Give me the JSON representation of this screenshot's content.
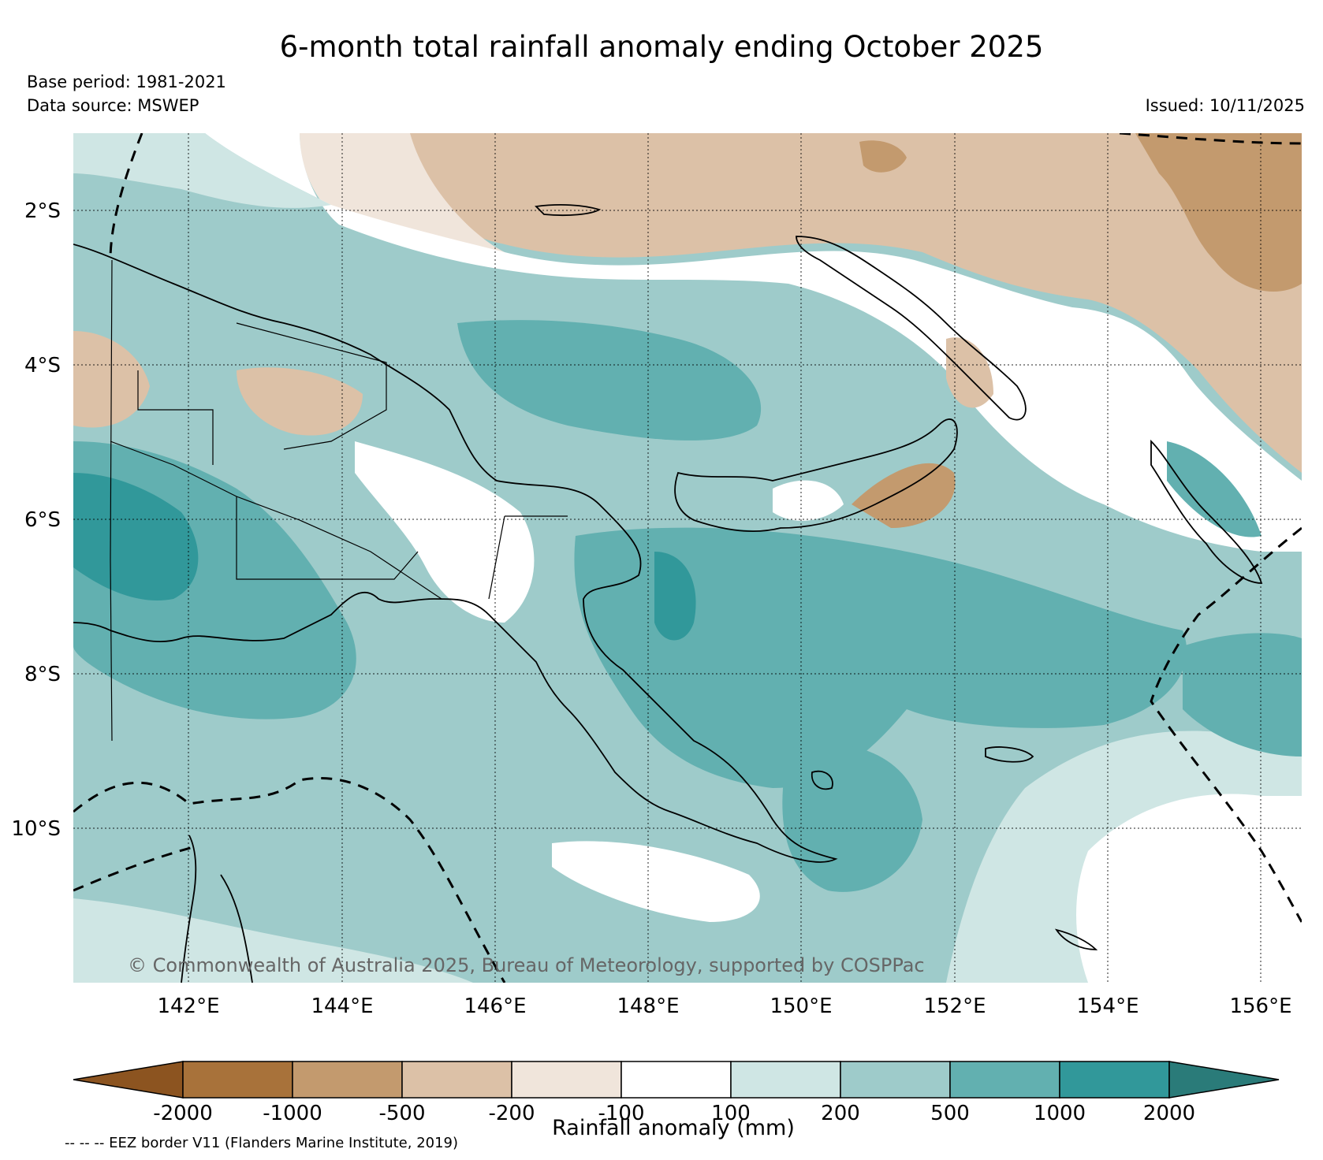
{
  "title": "6-month total rainfall anomaly ending October 2025",
  "base_period": "Base period: 1981-2021",
  "data_source": "Data source: MSWEP",
  "issued": "Issued: 10/11/2025",
  "copyright": "© Commonwealth of Australia 2025, Bureau of Meteorology, supported by COSPPac",
  "eez_note": "-- -- -- EEZ border V11 (Flanders Marine Institute, 2019)",
  "map": {
    "lat_labels": [
      "2°S",
      "4°S",
      "6°S",
      "8°S",
      "10°S"
    ],
    "lon_labels": [
      "142°E",
      "144°E",
      "146°E",
      "148°E",
      "150°E",
      "152°E",
      "154°E",
      "156°E"
    ],
    "lat_range": [
      -12,
      -1
    ],
    "lon_range": [
      140.5,
      156.5
    ]
  },
  "colorbar": {
    "title": "Rainfall anomaly (mm)",
    "tick_labels": [
      "-2000",
      "-1000",
      "-500",
      "-200",
      "-100",
      "100",
      "200",
      "500",
      "1000",
      "2000"
    ],
    "colors": [
      "#8c5420",
      "#a8723a",
      "#c39a6e",
      "#dcc1a7",
      "#f0e5db",
      "#ffffff",
      "#cfe6e4",
      "#9ecbca",
      "#62b0b0",
      "#31989a",
      "#2a7b79"
    ]
  }
}
